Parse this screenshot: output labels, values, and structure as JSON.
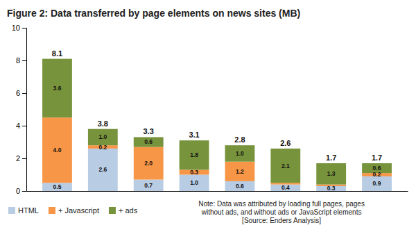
{
  "chart_data": {
    "type": "bar",
    "title": "Figure 2: Data transferred by page elements on news sites (MB)",
    "categories": [
      null,
      null,
      null,
      null,
      null,
      null,
      null,
      null
    ],
    "series": [
      {
        "name": "HTML",
        "color": "#b8cce4",
        "values": [
          0.5,
          2.6,
          0.7,
          1.0,
          0.6,
          0.4,
          0.3,
          0.9
        ],
        "value_labels": [
          "0.5",
          "2.6",
          "0.7",
          "1.0",
          "0.6",
          "0.4",
          "0.3",
          "0.9"
        ]
      },
      {
        "name": "+ Javascript",
        "color": "#f79646",
        "values": [
          4.0,
          0.2,
          2.0,
          0.3,
          1.2,
          0.1,
          0.1,
          0.2
        ],
        "value_labels": [
          "4.0",
          "0.2",
          "2.0",
          "0.3",
          "1.2",
          null,
          null,
          "0.2"
        ]
      },
      {
        "name": "+ ads",
        "color": "#77933c",
        "values": [
          3.6,
          1.0,
          0.6,
          1.8,
          1.0,
          2.1,
          1.3,
          0.6
        ],
        "value_labels": [
          "3.6",
          "1.0",
          "0.6",
          "1.8",
          "1.0",
          "2.1",
          "1.3",
          "0.6"
        ]
      }
    ],
    "totals": [
      8.1,
      3.8,
      3.3,
      3.1,
      2.8,
      2.6,
      1.7,
      1.7
    ],
    "stacked": true,
    "data_labels": true,
    "ylim": [
      0,
      10
    ],
    "yticks": [
      0,
      2,
      4,
      6,
      8,
      10
    ],
    "grid": false,
    "legend": "lower left",
    "tick_labels": "y",
    "annotations": [
      "Note: Data was attributed by loading full pages, pages\nwithout ads, and without ads or JavaScript elements\n[Source: Enders Analysis]"
    ]
  }
}
